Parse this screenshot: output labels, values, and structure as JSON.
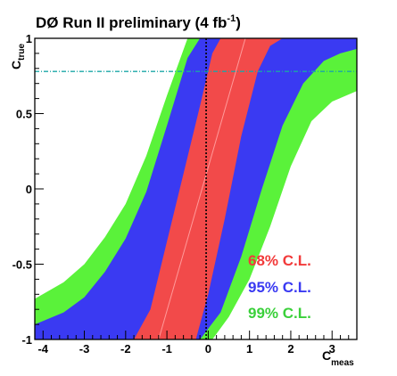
{
  "chart_data": {
    "type": "area",
    "title_main": "DØ Run II preliminary (4 fb",
    "title_sup": "-1",
    "title_end": ")",
    "ylabel": {
      "main": "C",
      "sub": "true"
    },
    "xlabel": {
      "main": "C",
      "sub": "meas"
    },
    "xlim": [
      -4.2,
      3.6
    ],
    "ylim": [
      -1,
      1
    ],
    "x_ticks": [
      -4,
      -3,
      -2,
      -1,
      0,
      1,
      2,
      3
    ],
    "y_ticks": [
      -1,
      -0.5,
      0,
      0.5,
      1
    ],
    "y_tick_labels": [
      "-1",
      "-0.5",
      "0",
      "0.5",
      "1"
    ],
    "bands": [
      {
        "name": "99% C.L.",
        "color": "#5af23a",
        "upper": [
          [
            -4.2,
            -0.73
          ],
          [
            -3.5,
            -0.62
          ],
          [
            -3,
            -0.5
          ],
          [
            -2.5,
            -0.32
          ],
          [
            -2,
            -0.1
          ],
          [
            -1.5,
            0.22
          ],
          [
            -1,
            0.62
          ],
          [
            -0.5,
            1
          ],
          [
            3.6,
            1
          ]
        ],
        "lower": [
          [
            -4.2,
            -1
          ],
          [
            0.1,
            -1
          ],
          [
            0.5,
            -0.85
          ],
          [
            1,
            -0.6
          ],
          [
            1.5,
            -0.25
          ],
          [
            2,
            0.15
          ],
          [
            2.5,
            0.45
          ],
          [
            3,
            0.58
          ],
          [
            3.6,
            0.65
          ]
        ]
      },
      {
        "name": "95% C.L.",
        "color": "#3a3af2",
        "upper": [
          [
            -4.2,
            -0.9
          ],
          [
            -3.5,
            -0.82
          ],
          [
            -3,
            -0.72
          ],
          [
            -2.5,
            -0.55
          ],
          [
            -2,
            -0.33
          ],
          [
            -1.5,
            -0.02
          ],
          [
            -1,
            0.42
          ],
          [
            -0.5,
            0.87
          ],
          [
            -0.2,
            1
          ],
          [
            3.6,
            1
          ]
        ],
        "lower": [
          [
            -4.2,
            -1
          ],
          [
            -0.2,
            -1
          ],
          [
            0.3,
            -0.82
          ],
          [
            0.8,
            -0.45
          ],
          [
            1.3,
            0
          ],
          [
            1.8,
            0.42
          ],
          [
            2.3,
            0.7
          ],
          [
            2.8,
            0.85
          ],
          [
            3.2,
            0.9
          ],
          [
            3.6,
            0.93
          ]
        ]
      },
      {
        "name": "68% C.L.",
        "color": "#f24a4a",
        "upper": [
          [
            -4.2,
            -1
          ],
          [
            -1.8,
            -1
          ],
          [
            -1.4,
            -0.8
          ],
          [
            -1,
            -0.35
          ],
          [
            -0.6,
            0.1
          ],
          [
            -0.2,
            0.55
          ],
          [
            0.1,
            0.9
          ],
          [
            0.3,
            1
          ],
          [
            3.6,
            1
          ]
        ],
        "lower": [
          [
            -4.2,
            -1
          ],
          [
            -0.3,
            -1
          ],
          [
            0,
            -0.7
          ],
          [
            0.4,
            -0.2
          ],
          [
            0.8,
            0.35
          ],
          [
            1.2,
            0.78
          ],
          [
            1.5,
            0.95
          ],
          [
            1.8,
            1
          ],
          [
            3.6,
            1
          ]
        ]
      }
    ],
    "central_line": [
      [
        -1.2,
        -1
      ],
      [
        0.9,
        1
      ]
    ],
    "vertical_line_x": -0.05,
    "horizontal_line_y": 0.78,
    "legend": [
      {
        "label": "68% C.L.",
        "color": "#f23a3a"
      },
      {
        "label": "95% C.L.",
        "color": "#3a3af2"
      },
      {
        "label": "99% C.L.",
        "color": "#3ad03a"
      }
    ]
  }
}
